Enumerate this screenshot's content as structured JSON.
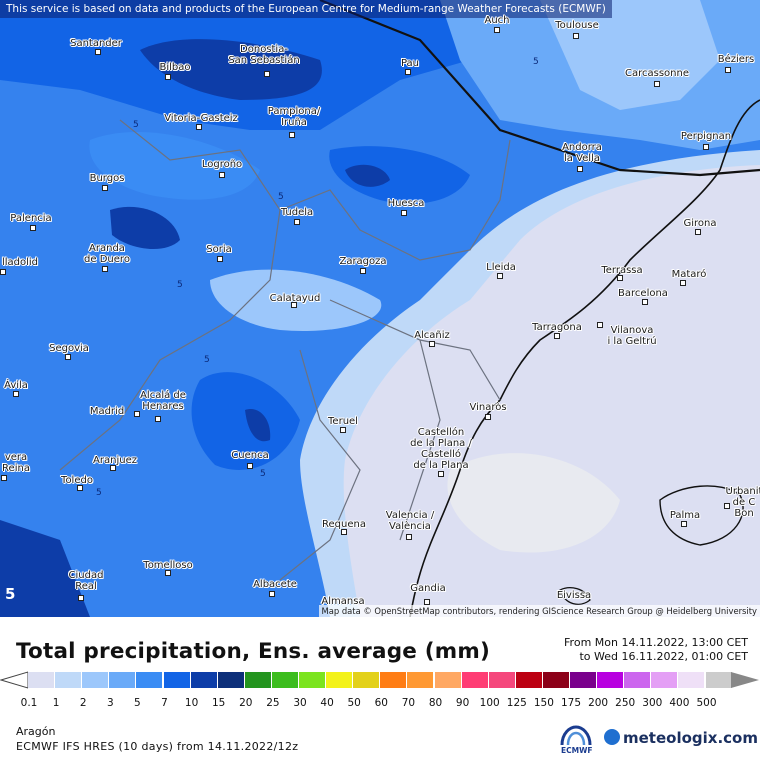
{
  "map": {
    "disclaimer": "This service is based on data and products of the European Centre for Medium-range Weather Forecasts (ECMWF)",
    "attribution": "Map data © OpenStreetMap contributors, rendering GIScience Research Group @ Heidelberg University",
    "corner_label": "5",
    "contour_label": "5",
    "cities": [
      {
        "name": "Santander"
      },
      {
        "name": "Bilbao"
      },
      {
        "name": "Donostia-\nSan Sebastián"
      },
      {
        "name": "Auch"
      },
      {
        "name": "Toulouse"
      },
      {
        "name": "Pau"
      },
      {
        "name": "Carcassonne"
      },
      {
        "name": "Béziers"
      },
      {
        "name": "Vitoria-Gasteiz"
      },
      {
        "name": "Pamplona/\nIruña"
      },
      {
        "name": "Perpignan"
      },
      {
        "name": "Andorra\nla Vella"
      },
      {
        "name": "Logroño"
      },
      {
        "name": "Burgos"
      },
      {
        "name": "Huesca"
      },
      {
        "name": "Tudela"
      },
      {
        "name": "Girona"
      },
      {
        "name": "Palencia"
      },
      {
        "name": "Aranda\nde Duero"
      },
      {
        "name": "Soria"
      },
      {
        "name": "Zaragoza"
      },
      {
        "name": "Lleida"
      },
      {
        "name": "Terrassa"
      },
      {
        "name": "Mataró"
      },
      {
        "name": "Barcelona"
      },
      {
        "name": "lladolid"
      },
      {
        "name": "Calatayud"
      },
      {
        "name": "Tarragona"
      },
      {
        "name": "Vilanova\ni la Geltrú"
      },
      {
        "name": "Alcañiz"
      },
      {
        "name": "Segovia"
      },
      {
        "name": "Ávila"
      },
      {
        "name": "Alcalá de\nHenares"
      },
      {
        "name": "Madrid"
      },
      {
        "name": "Vinaròs"
      },
      {
        "name": "Teruel"
      },
      {
        "name": "Castellón\nde la Plana /\nCastelló\nde la Plana"
      },
      {
        "name": "vera\nReina"
      },
      {
        "name": "Aranjuez"
      },
      {
        "name": "Cuenca"
      },
      {
        "name": "Toledo"
      },
      {
        "name": "Palma"
      },
      {
        "name": "Urbanit\nde C\nBon"
      },
      {
        "name": "Requena"
      },
      {
        "name": "Valencia /\nValència"
      },
      {
        "name": "Tomelloso"
      },
      {
        "name": "Ciudad\nReal"
      },
      {
        "name": "Albacete"
      },
      {
        "name": "Gandia"
      },
      {
        "name": "Almansa"
      },
      {
        "name": "Eivissa"
      }
    ]
  },
  "legend": {
    "title": "Total precipitation, Ens. average (mm)",
    "from": "From Mon 14.11.2022, 13:00 CET",
    "to": "to Wed 16.11.2022, 01:00 CET",
    "ticks": [
      "0.1",
      "1",
      "2",
      "3",
      "5",
      "7",
      "10",
      "15",
      "20",
      "25",
      "30",
      "40",
      "50",
      "60",
      "70",
      "80",
      "90",
      "100",
      "125",
      "150",
      "175",
      "200",
      "250",
      "300",
      "400",
      "500"
    ],
    "colors": [
      "#dcdff2",
      "#bfd9f8",
      "#9cc7fb",
      "#6aaaf8",
      "#3a8cf4",
      "#1264e6",
      "#0d3da8",
      "#0d2f7a",
      "#24951f",
      "#3cbd1d",
      "#7be41f",
      "#f3f21a",
      "#e3d11a",
      "#ff7d14",
      "#ff9933",
      "#ffa863",
      "#ff3d74",
      "#f5477c",
      "#bc0012",
      "#8c0018",
      "#7a008c",
      "#b800e0",
      "#cc66ee",
      "#e49ff5",
      "#efe0f7",
      "#cccccc"
    ]
  },
  "footer": {
    "region": "Aragón",
    "model": "ECMWF IFS HRES (10 days) from 14.11.2022/12z",
    "ecmwf": "ECMWF",
    "brand": "meteologix.com"
  }
}
